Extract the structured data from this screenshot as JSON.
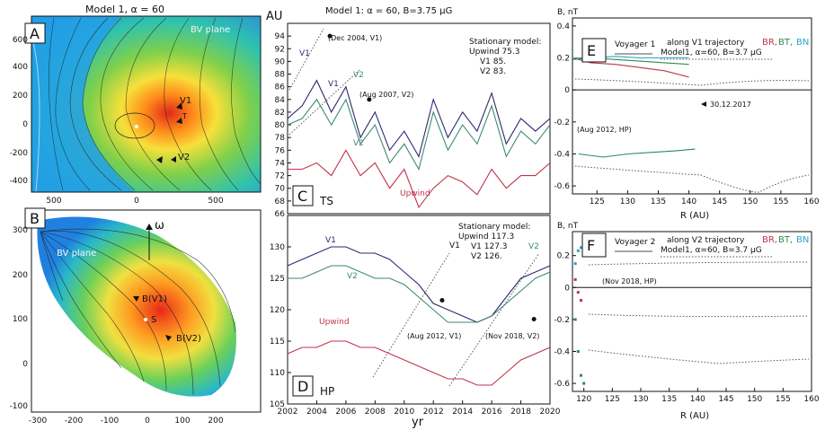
{
  "panels": {
    "A": {
      "letter": "A",
      "title": "Model 1, α = 60",
      "plane_label": "BV plane",
      "xticks": [
        "500",
        "0",
        "500"
      ],
      "yticks": [
        "600",
        "400",
        "200",
        "0",
        "-200",
        "-400"
      ],
      "labels": {
        "v1": "V1",
        "v2": "V2",
        "t": "T"
      }
    },
    "B": {
      "letter": "B",
      "plane_label": "BV plane",
      "omega": "ω",
      "xticks": [
        "-300",
        "-200",
        "-100",
        "0",
        "100",
        "200"
      ],
      "yticks": [
        "300",
        "200",
        "100",
        "0",
        "-100",
        "-200"
      ],
      "labels": {
        "bv1": "B(V1)",
        "bv2": "B(V2)",
        "s": "S"
      }
    },
    "C": {
      "letter": "C",
      "title": "Model 1: α = 60, B=3.75 μG",
      "ylabel": "AU",
      "tag": "TS",
      "stationary": [
        "Stationary model:",
        "Upwind  75.3",
        "V1  85.",
        "V2  83."
      ],
      "ann": [
        "(Dec 2004, V1)",
        "(Aug 2007, V2)"
      ],
      "series_labels": [
        "V1",
        "V1",
        "V2",
        "V2",
        "Upwind"
      ]
    },
    "D": {
      "letter": "D",
      "tag": "HP",
      "xlabel": "yr",
      "stationary": [
        "Stationary model:",
        "Upwind  117.3",
        "V1  127.3",
        "V2  126."
      ],
      "ann": [
        "(Aug 2012, V1)",
        "(Nov 2018, V2)"
      ],
      "series_labels": [
        "V1",
        "V2",
        "Upwind",
        "V1",
        "V2"
      ]
    },
    "E": {
      "letter": "E",
      "ylabel": "B, nT",
      "xlabel": "R (AU)",
      "craft": "Voyager 1",
      "traj": "along V1 trajectory",
      "model": "Model1, α=60, B=3.7 μG",
      "comps": [
        "BR,",
        "BT,",
        "BN"
      ],
      "ann": [
        "30.12.2017",
        "(Aug 2012, HP)"
      ]
    },
    "F": {
      "letter": "F",
      "ylabel": "B, nT",
      "xlabel": "R (AU)",
      "craft": "Voyager 2",
      "traj": "along V2 trajectory",
      "model": "Model1, α=60, B=3.7 μG",
      "comps": [
        "BR,",
        "BT,",
        "BN"
      ],
      "ann": [
        "(Nov 2018, HP)"
      ]
    }
  },
  "colors": {
    "v1": "#2e2a6e",
    "v2": "#3f8a72",
    "upwind": "#c0334a",
    "br": "#c0334a",
    "bt": "#2e8a55",
    "bn": "#2aa3c8"
  },
  "chart_data": [
    {
      "type": "line",
      "panel": "C",
      "ylabel": "AU",
      "xlim": [
        2002,
        2020
      ],
      "ylim": [
        66,
        96
      ],
      "yticks": [
        66,
        68,
        70,
        72,
        74,
        76,
        78,
        80,
        82,
        84,
        86,
        88,
        90,
        92,
        94
      ],
      "x": [
        2002,
        2003,
        2004,
        2005,
        2006,
        2007,
        2008,
        2009,
        2010,
        2011,
        2012,
        2013,
        2014,
        2015,
        2016,
        2017,
        2018,
        2019,
        2020
      ],
      "series": [
        {
          "name": "V1",
          "values": [
            81,
            83,
            87,
            82,
            86,
            78,
            82,
            76,
            79,
            75,
            84,
            78,
            82,
            79,
            85,
            77,
            81,
            79,
            81
          ]
        },
        {
          "name": "V2",
          "values": [
            80,
            81,
            84,
            80,
            84,
            77,
            80,
            74,
            77,
            73,
            82,
            76,
            80,
            77,
            83,
            75,
            79,
            77,
            80
          ]
        },
        {
          "name": "Upwind",
          "values": [
            73,
            73,
            74,
            72,
            76,
            72,
            74,
            70,
            73,
            67,
            70,
            72,
            71,
            69,
            73,
            70,
            72,
            72,
            74
          ]
        }
      ],
      "points": [
        {
          "x": 2004.9,
          "y": 94,
          "label": "(Dec 2004, V1)"
        },
        {
          "x": 2007.6,
          "y": 84,
          "label": "(Aug 2007, V2)"
        }
      ]
    },
    {
      "type": "line",
      "panel": "D",
      "xlabel": "yr",
      "xlim": [
        2002,
        2020
      ],
      "ylim": [
        105,
        135
      ],
      "yticks": [
        105,
        110,
        115,
        120,
        125,
        130
      ],
      "xticks": [
        2002,
        2004,
        2006,
        2008,
        2010,
        2012,
        2014,
        2016,
        2018,
        2020
      ],
      "x": [
        2002,
        2003,
        2004,
        2005,
        2006,
        2007,
        2008,
        2009,
        2010,
        2011,
        2012,
        2013,
        2014,
        2015,
        2016,
        2017,
        2018,
        2019,
        2020
      ],
      "series": [
        {
          "name": "V1",
          "values": [
            127,
            128,
            129,
            130,
            130,
            129,
            129,
            128,
            126,
            124,
            121,
            120,
            119,
            118,
            119,
            122,
            125,
            126,
            127
          ]
        },
        {
          "name": "V2",
          "values": [
            125,
            125,
            126,
            127,
            127,
            126,
            125,
            125,
            124,
            122,
            120,
            118,
            118,
            118,
            119,
            121,
            123,
            125,
            126
          ]
        },
        {
          "name": "Upwind",
          "values": [
            113,
            114,
            114,
            115,
            115,
            114,
            114,
            113,
            112,
            111,
            110,
            109,
            109,
            108,
            108,
            110,
            112,
            113,
            114
          ]
        }
      ],
      "points": [
        {
          "x": 2012.6,
          "y": 121.5,
          "label": "(Aug 2012, V1)"
        },
        {
          "x": 2018.9,
          "y": 118.5,
          "label": "(Nov 2018, V2)"
        }
      ]
    },
    {
      "type": "line",
      "panel": "E",
      "ylabel": "B, nT",
      "xlabel": "R (AU)",
      "xlim": [
        121,
        160
      ],
      "ylim": [
        -0.65,
        0.45
      ],
      "xticks": [
        125,
        130,
        135,
        140,
        145,
        150,
        155,
        160
      ],
      "yticks": [
        -0.6,
        -0.4,
        -0.2,
        0,
        0.2,
        0.4
      ],
      "series": [
        {
          "name": "BR",
          "x": [
            121,
            124,
            128,
            132,
            136,
            140
          ],
          "values": [
            0.2,
            0.17,
            0.16,
            0.14,
            0.12,
            0.08
          ]
        },
        {
          "name": "BT",
          "x": [
            121,
            124,
            128,
            132,
            136,
            140
          ],
          "values": [
            0.19,
            0.2,
            0.19,
            0.18,
            0.17,
            0.16
          ]
        },
        {
          "name": "BN",
          "x": [
            121,
            124,
            128,
            132,
            136,
            140
          ],
          "values": [
            0.2,
            0.2,
            0.21,
            0.2,
            0.2,
            0.2
          ]
        },
        {
          "name": "BT",
          "x": [
            122,
            126,
            130,
            134,
            138,
            141
          ],
          "values": [
            -0.4,
            -0.42,
            -0.4,
            -0.39,
            -0.38,
            -0.37
          ]
        }
      ]
    },
    {
      "type": "line",
      "panel": "F",
      "ylabel": "B, nT",
      "xlabel": "R (AU)",
      "xlim": [
        118,
        160
      ],
      "ylim": [
        -0.65,
        0.35
      ],
      "xticks": [
        120,
        125,
        130,
        135,
        140,
        145,
        150,
        155,
        160
      ],
      "yticks": [
        -0.6,
        -0.4,
        -0.2,
        0,
        0.2
      ],
      "series": [
        {
          "name": "BR",
          "x": [
            118.5,
            119,
            119.5
          ],
          "values": [
            0.05,
            -0.03,
            -0.08
          ]
        },
        {
          "name": "BT",
          "x": [
            118.5,
            119,
            119.5,
            120
          ],
          "values": [
            -0.2,
            -0.4,
            -0.55,
            -0.6
          ]
        },
        {
          "name": "BN",
          "x": [
            118.5,
            119,
            119.5
          ],
          "values": [
            0.15,
            0.23,
            0.25
          ]
        }
      ]
    }
  ]
}
